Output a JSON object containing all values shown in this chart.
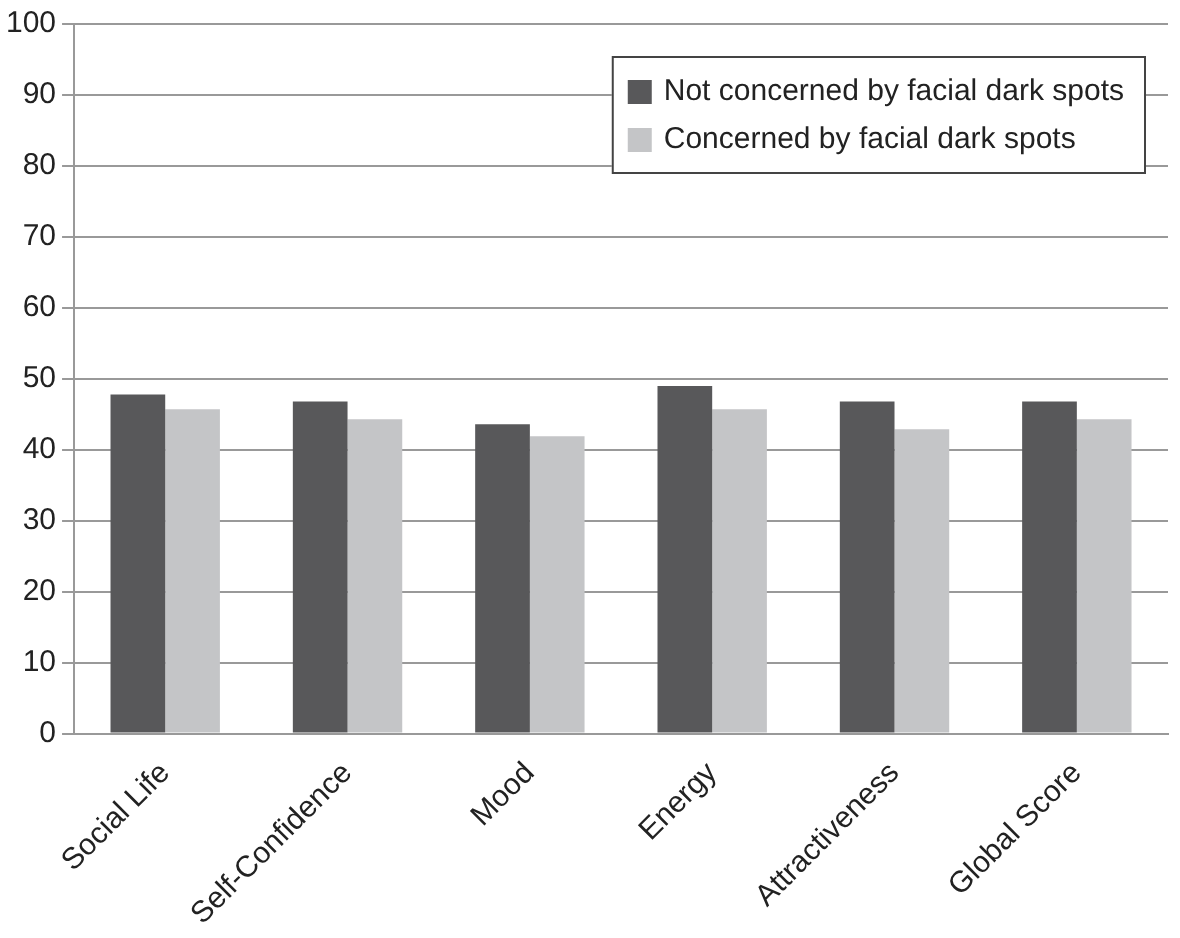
{
  "chart_data": {
    "type": "bar",
    "categories": [
      "Social Life",
      "Self-Confidence",
      "Mood",
      "Energy",
      "Attractiveness",
      "Global Score"
    ],
    "series": [
      {
        "name": "Not concerned by facial dark spots",
        "color": "#58585a",
        "values": [
          47.8,
          46.8,
          43.6,
          49,
          46.8,
          46.8
        ]
      },
      {
        "name": "Concerned by facial dark spots",
        "color": "#c4c5c7",
        "values": [
          45.7,
          44.3,
          41.9,
          45.7,
          42.9,
          44.3
        ]
      }
    ],
    "ylim": [
      0,
      100
    ],
    "yticks": [
      0,
      10,
      20,
      30,
      40,
      50,
      60,
      70,
      80,
      90,
      100
    ],
    "grid": "y",
    "legend": "top right"
  }
}
